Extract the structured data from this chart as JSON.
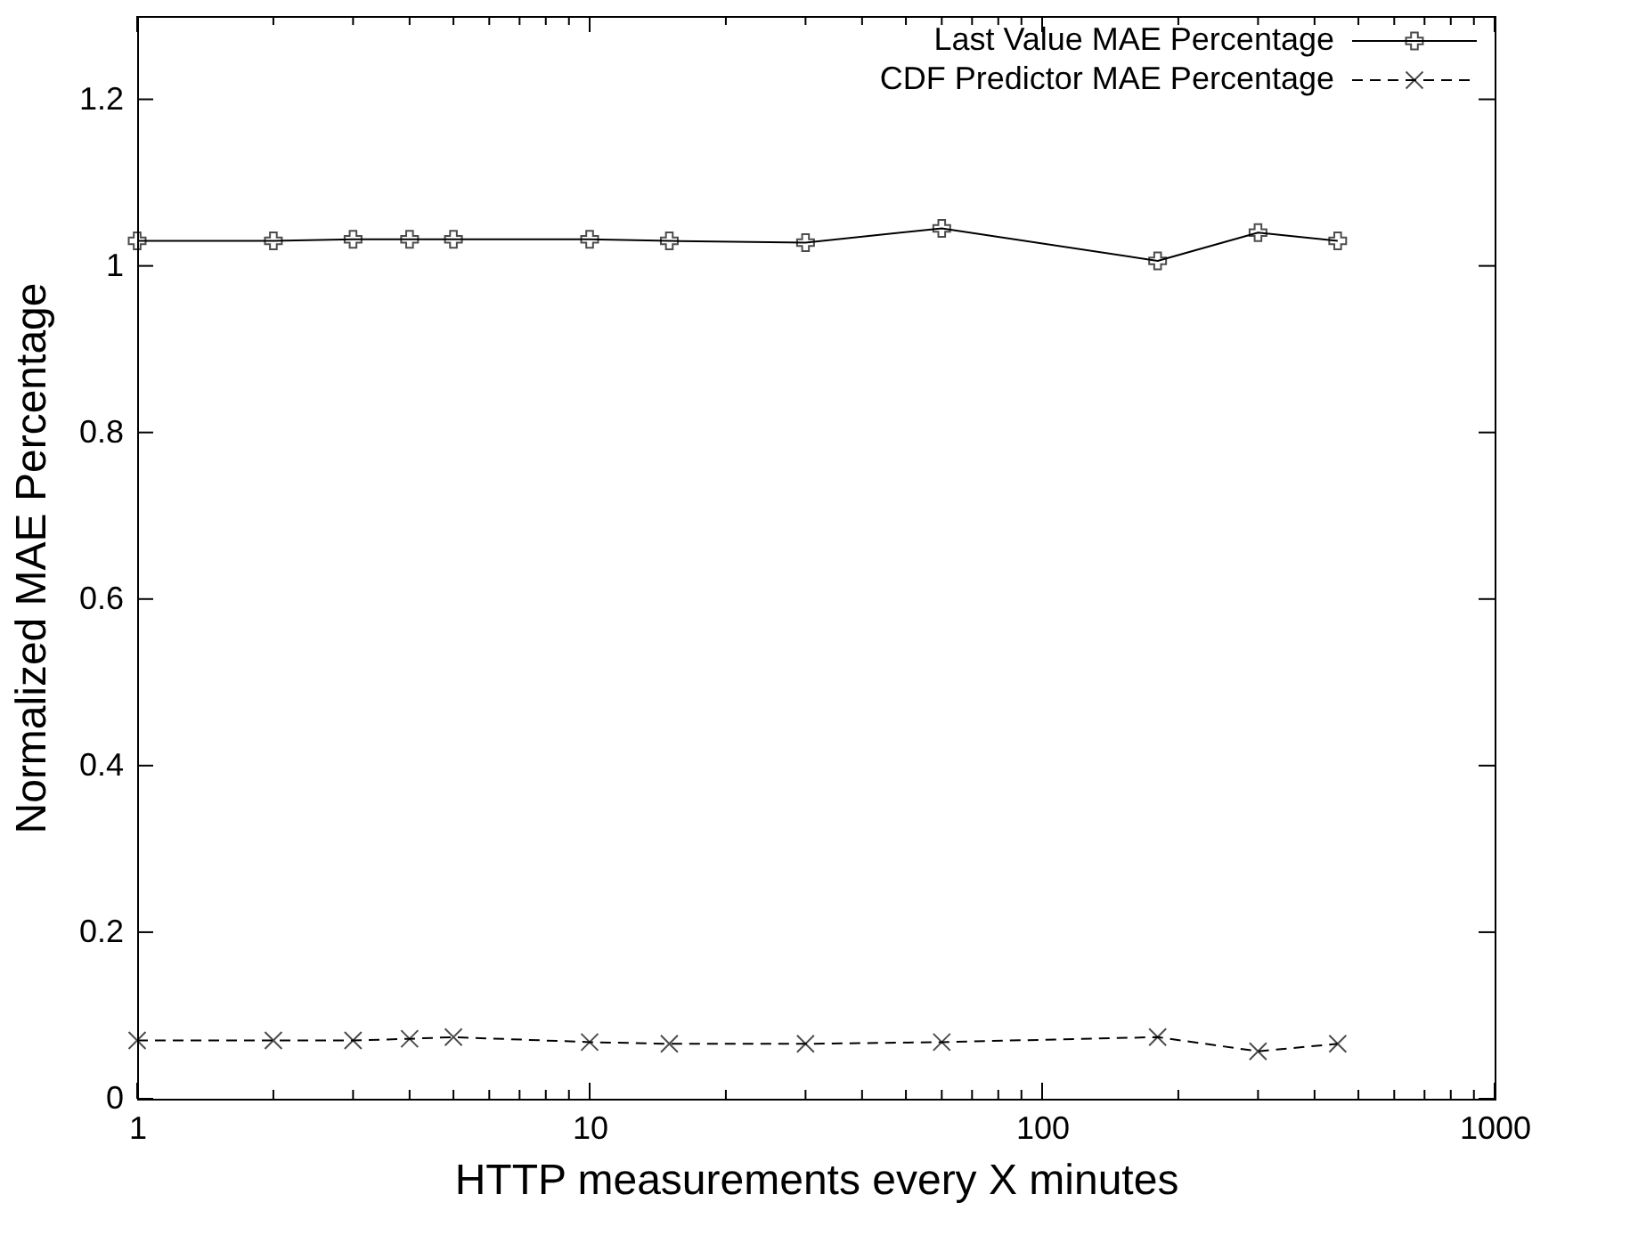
{
  "chart_data": {
    "type": "line",
    "xlabel": "HTTP measurements every X minutes",
    "ylabel": "Normalized MAE Percentage",
    "x": [
      1,
      2,
      3,
      4,
      5,
      10,
      15,
      30,
      60,
      180,
      300,
      450
    ],
    "series": [
      {
        "name": "Last Value MAE Percentage",
        "color": "#000000",
        "line_style": "solid",
        "marker": "cross",
        "values": [
          1.03,
          1.03,
          1.032,
          1.032,
          1.032,
          1.032,
          1.03,
          1.028,
          1.045,
          1.006,
          1.04,
          1.03
        ]
      },
      {
        "name": "CDF Predictor MAE Percentage",
        "color": "#000000",
        "line_style": "dashed",
        "marker": "x",
        "values": [
          0.07,
          0.07,
          0.07,
          0.072,
          0.074,
          0.068,
          0.066,
          0.066,
          0.068,
          0.074,
          0.057,
          0.066
        ]
      }
    ],
    "log": "x",
    "xlim": [
      1,
      1000
    ],
    "ylim": [
      0,
      1.3
    ],
    "xticks": [
      1,
      {
        "value": 2,
        "label": null
      },
      {
        "value": 3,
        "label": null
      },
      {
        "value": 4,
        "label": null
      },
      {
        "value": 5,
        "label": null
      },
      {
        "value": 6,
        "label": null
      },
      {
        "value": 7,
        "label": null
      },
      {
        "value": 8,
        "label": null
      },
      {
        "value": 9,
        "label": null
      },
      10,
      {
        "value": 20,
        "label": null
      },
      {
        "value": 30,
        "label": null
      },
      {
        "value": 40,
        "label": null
      },
      {
        "value": 50,
        "label": null
      },
      {
        "value": 60,
        "label": null
      },
      {
        "value": 70,
        "label": null
      },
      {
        "value": 80,
        "label": null
      },
      {
        "value": 90,
        "label": null
      },
      100,
      {
        "value": 200,
        "label": null
      },
      {
        "value": 300,
        "label": null
      },
      {
        "value": 400,
        "label": null
      },
      {
        "value": 500,
        "label": null
      },
      {
        "value": 600,
        "label": null
      },
      {
        "value": 700,
        "label": null
      },
      {
        "value": 800,
        "label": null
      },
      {
        "value": 900,
        "label": null
      },
      1000
    ],
    "yticks": [
      0,
      0.2,
      0.4,
      0.6,
      0.8,
      1,
      1.2
    ],
    "grid": false,
    "legend": "top right"
  }
}
